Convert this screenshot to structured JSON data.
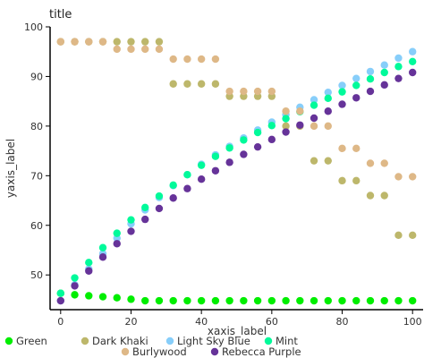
{
  "chart_data": {
    "type": "scatter",
    "title": "title",
    "xlabel": "xaxis_label",
    "ylabel": "yaxis_label",
    "xlim": [
      -3,
      103
    ],
    "ylim": [
      43,
      100
    ],
    "xticks": [
      0,
      20,
      40,
      60,
      80,
      100
    ],
    "yticks": [
      50,
      60,
      70,
      80,
      90,
      100
    ],
    "grid": false,
    "legend_position": "bottom",
    "x": [
      0,
      4,
      8,
      12,
      16,
      20,
      24,
      28,
      32,
      36,
      40,
      44,
      48,
      52,
      56,
      60,
      64,
      68,
      72,
      76,
      80,
      84,
      88,
      92,
      96,
      100
    ],
    "series": [
      {
        "name": "Green",
        "color": "#00ee00",
        "values": [
          46.3,
          46.0,
          45.8,
          45.6,
          45.4,
          45.1,
          44.8,
          44.8,
          44.8,
          44.8,
          44.8,
          44.8,
          44.8,
          44.8,
          44.8,
          44.8,
          44.8,
          44.8,
          44.8,
          44.8,
          44.8,
          44.8,
          44.8,
          44.8,
          44.8,
          44.8
        ]
      },
      {
        "name": "Dark Khaki",
        "color": "#bdb76b",
        "values": [
          97.0,
          97.0,
          97.0,
          97.0,
          97.0,
          97.0,
          97.0,
          97.0,
          88.5,
          88.5,
          88.5,
          88.5,
          86.0,
          86.0,
          86.0,
          86.0,
          80.0,
          80.0,
          73.0,
          73.0,
          69.0,
          69.0,
          66.0,
          66.0,
          58.0,
          58.0
        ]
      },
      {
        "name": "Light Sky Blue",
        "color": "#87cefa",
        "values": [
          44.8,
          48.0,
          51.2,
          54.3,
          57.4,
          60.3,
          63.1,
          65.6,
          68.0,
          70.2,
          72.3,
          74.2,
          75.9,
          77.6,
          79.2,
          80.8,
          82.3,
          83.8,
          85.3,
          86.8,
          88.2,
          89.6,
          91.0,
          92.3,
          93.7,
          95.0
        ]
      },
      {
        "name": "Mint",
        "color": "#00fa9a",
        "values": [
          46.3,
          49.4,
          52.5,
          55.5,
          58.4,
          61.1,
          63.6,
          65.9,
          68.1,
          70.2,
          72.1,
          73.9,
          75.6,
          77.2,
          78.7,
          80.1,
          81.5,
          82.9,
          84.2,
          85.6,
          86.9,
          88.2,
          89.5,
          90.8,
          92.0,
          93.0
        ]
      },
      {
        "name": "Burlywood",
        "color": "#deb887",
        "values": [
          97.0,
          97.0,
          97.0,
          97.0,
          95.5,
          95.5,
          95.5,
          95.5,
          93.5,
          93.5,
          93.5,
          93.5,
          87.0,
          87.0,
          87.0,
          87.0,
          83.0,
          83.0,
          80.0,
          80.0,
          75.5,
          75.5,
          72.5,
          72.5,
          69.8,
          69.8
        ]
      },
      {
        "name": "Rebecca Purple",
        "color": "#663399",
        "values": [
          44.8,
          47.8,
          50.8,
          53.6,
          56.3,
          58.8,
          61.2,
          63.4,
          65.5,
          67.4,
          69.3,
          71.0,
          72.7,
          74.3,
          75.8,
          77.3,
          78.8,
          80.2,
          81.6,
          83.0,
          84.4,
          85.7,
          87.0,
          88.3,
          89.6,
          90.8
        ]
      }
    ]
  }
}
